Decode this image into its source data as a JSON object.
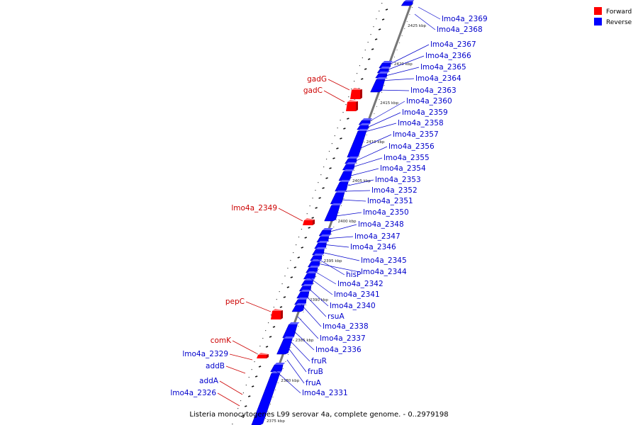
{
  "caption": "Listeria monocytogenes L99 serovar 4a, complete genome. - 0..2979198",
  "colors": {
    "forward": "#ff0000",
    "reverse": "#0000ff",
    "forward_text": "#cc0000",
    "reverse_text": "#0000cc"
  },
  "legend": [
    {
      "label": "Forward",
      "color": "#ff0000"
    },
    {
      "label": "Reverse",
      "color": "#0000ff"
    }
  ],
  "ticks": [
    "2425 kbp",
    "2420 kbp",
    "2415 kbp",
    "2410 kbp",
    "2405 kbp",
    "2400 kbp",
    "2395 kbp",
    "2390 kbp",
    "2385 kbp",
    "2380 kbp",
    "2375 kbp"
  ],
  "forward_genes": [
    "gadG",
    "gadC",
    "lmo4a_2349",
    "pepC",
    "comK",
    "lmo4a_2329",
    "addB",
    "addA",
    "lmo4a_2326"
  ],
  "reverse_genes": [
    "lmo4a_2369",
    "lmo4a_2368",
    "lmo4a_2367",
    "lmo4a_2366",
    "lmo4a_2365",
    "lmo4a_2364",
    "lmo4a_2363",
    "lmo4a_2360",
    "lmo4a_2359",
    "lmo4a_2358",
    "lmo4a_2357",
    "lmo4a_2356",
    "lmo4a_2355",
    "lmo4a_2354",
    "lmo4a_2353",
    "lmo4a_2352",
    "lmo4a_2351",
    "lmo4a_2350",
    "lmo4a_2348",
    "lmo4a_2347",
    "lmo4a_2346",
    "lmo4a_2345",
    "hisP",
    "lmo4a_2344",
    "lmo4a_2342",
    "lmo4a_2341",
    "lmo4a_2340",
    "rsuA",
    "lmo4a_2338",
    "lmo4a_2337",
    "lmo4a_2336",
    "fruR",
    "fruB",
    "fruA",
    "lmo4a_2331"
  ]
}
